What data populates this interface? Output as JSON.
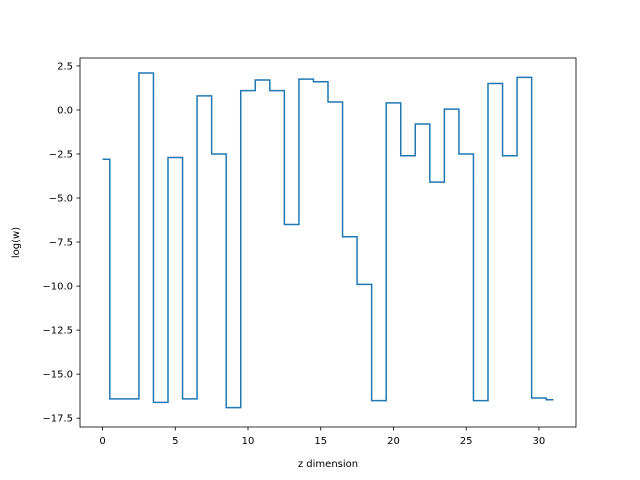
{
  "chart_data": {
    "type": "line",
    "drawstyle": "steps-mid",
    "title": "",
    "xlabel": "z dimension",
    "ylabel": "log(w)",
    "xlim": [
      -1.55,
      32.55
    ],
    "ylim": [
      -18.0,
      2.95
    ],
    "grid": false,
    "legend": "none",
    "line_color": "#1f77b4",
    "x_ticks": [
      0,
      5,
      10,
      15,
      20,
      25,
      30
    ],
    "x_tick_labels": [
      "0",
      "5",
      "10",
      "15",
      "20",
      "25",
      "30"
    ],
    "y_ticks": [
      2.5,
      0.0,
      -2.5,
      -5.0,
      -7.5,
      -10.0,
      -12.5,
      -15.0,
      -17.5
    ],
    "y_tick_labels": [
      "2.5",
      "0.0",
      "−2.5",
      "−5.0",
      "−7.5",
      "−10.0",
      "−12.5",
      "−15.0",
      "−17.5"
    ],
    "series": [
      {
        "x": [
          0,
          1,
          2,
          3,
          4,
          5,
          6,
          7,
          8,
          9,
          10,
          11,
          12,
          13,
          14,
          15,
          16,
          17,
          18,
          19,
          20,
          21,
          22,
          23,
          24,
          25,
          26,
          27,
          28,
          29,
          30,
          31
        ],
        "values": [
          -2.8,
          -16.4,
          -16.4,
          2.1,
          -16.6,
          -2.7,
          -16.4,
          0.8,
          -2.5,
          -16.9,
          1.1,
          1.7,
          1.1,
          -6.5,
          1.75,
          1.6,
          0.45,
          -7.2,
          -9.9,
          -16.5,
          0.4,
          -2.6,
          -0.8,
          -4.1,
          0.05,
          -2.5,
          -16.5,
          1.5,
          -2.6,
          1.85,
          -16.35,
          -16.45
        ]
      }
    ]
  }
}
